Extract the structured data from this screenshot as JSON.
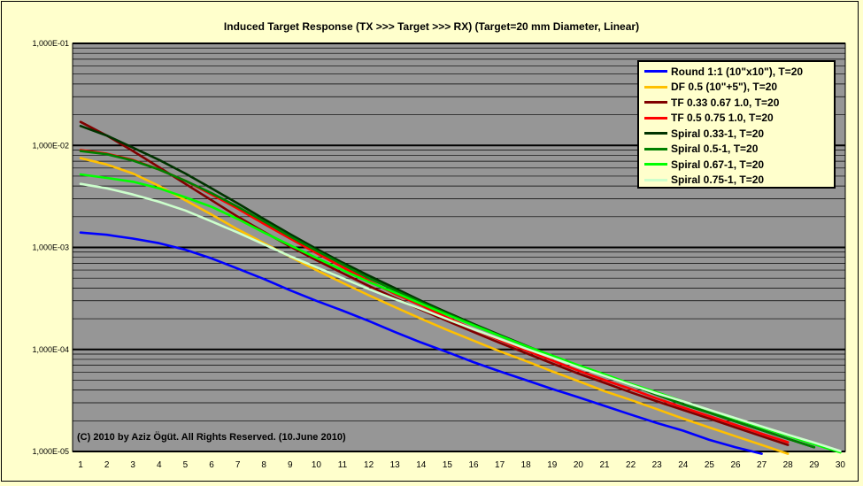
{
  "chart_data": {
    "type": "line",
    "title": "Induced Target Response (TX >>> Target >>> RX) (Target=20 mm Diameter, Linear)",
    "x": [
      1,
      2,
      3,
      4,
      5,
      6,
      7,
      8,
      9,
      10,
      11,
      12,
      13,
      14,
      15,
      16,
      17,
      18,
      19,
      20,
      21,
      22,
      23,
      24,
      25,
      26,
      27,
      28,
      29,
      30
    ],
    "xlim": [
      1,
      30
    ],
    "yscale": "log",
    "ylim": [
      1e-05,
      0.1
    ],
    "ytick_labels": [
      "1,000E-05",
      "1,000E-04",
      "1,000E-03",
      "1,000E-02",
      "1,000E-01"
    ],
    "grid": true,
    "legend_position": "top-right",
    "series": [
      {
        "name": "Round 1:1 (10\"x10\"), T=20",
        "color": "#0000ff",
        "values": [
          0.0014,
          0.00133,
          0.00122,
          0.0011,
          0.00095,
          0.00078,
          0.00062,
          0.00049,
          0.00038,
          0.0003,
          0.00024,
          0.00019,
          0.000148,
          0.000117,
          9.4e-05,
          7.5e-05,
          6.1e-05,
          5e-05,
          4.1e-05,
          3.4e-05,
          2.8e-05,
          2.3e-05,
          1.9e-05,
          1.6e-05,
          1.3e-05,
          1.1e-05,
          9.5e-06,
          null,
          null,
          null
        ]
      },
      {
        "name": "DF 0.5 (10\"+5\"), T=20",
        "color": "#ffc000",
        "values": [
          0.0075,
          0.0065,
          0.0053,
          0.004,
          0.0029,
          0.0021,
          0.0015,
          0.0011,
          0.00081,
          0.0006,
          0.00045,
          0.00034,
          0.00026,
          0.0002,
          0.000155,
          0.000122,
          9.6e-05,
          7.7e-05,
          6.1e-05,
          4.9e-05,
          3.9e-05,
          3.2e-05,
          2.6e-05,
          2.1e-05,
          1.72e-05,
          1.41e-05,
          1.16e-05,
          9.5e-06,
          null,
          null
        ]
      },
      {
        "name": "TF 0.33 0.67 1.0, T=20",
        "color": "#800000",
        "values": [
          0.017,
          0.0125,
          0.0088,
          0.0061,
          0.0042,
          0.0029,
          0.002,
          0.00142,
          0.00102,
          0.00075,
          0.00056,
          0.00042,
          0.00032,
          0.000245,
          0.00019,
          0.000148,
          0.000116,
          9.2e-05,
          7.3e-05,
          5.8e-05,
          4.7e-05,
          3.8e-05,
          3.1e-05,
          2.55e-05,
          2.1e-05,
          1.72e-05,
          1.41e-05,
          1.16e-05,
          null,
          null
        ]
      },
      {
        "name": "TF 0.5 0.75 1.0, T=20",
        "color": "#ff0000",
        "values": [
          0.009,
          0.0083,
          0.0072,
          0.0058,
          0.0045,
          0.0033,
          0.0024,
          0.0017,
          0.00122,
          0.00088,
          0.00064,
          0.00047,
          0.00035,
          0.00027,
          0.000205,
          0.000158,
          0.000124,
          9.8e-05,
          7.8e-05,
          6.2e-05,
          5e-05,
          4.1e-05,
          3.3e-05,
          2.7e-05,
          2.22e-05,
          1.82e-05,
          1.49e-05,
          1.23e-05,
          null,
          null
        ]
      },
      {
        "name": "Spiral 0.33-1, T=20",
        "color": "#003300",
        "values": [
          0.0155,
          0.0125,
          0.0095,
          0.0072,
          0.0053,
          0.0038,
          0.0027,
          0.0019,
          0.00135,
          0.00097,
          0.00071,
          0.00053,
          0.0004,
          0.0003,
          0.00023,
          0.000178,
          0.000139,
          0.000109,
          8.6e-05,
          6.9e-05,
          5.5e-05,
          4.5e-05,
          3.6e-05,
          2.9e-05,
          2.4e-05,
          1.97e-05,
          1.62e-05,
          1.33e-05,
          1.1e-05,
          null
        ]
      },
      {
        "name": "Spiral 0.5-1, T=20",
        "color": "#008000",
        "values": [
          0.0088,
          0.0082,
          0.0071,
          0.0058,
          0.0045,
          0.0034,
          0.0025,
          0.0018,
          0.00128,
          0.00093,
          0.00068,
          0.0005,
          0.00038,
          0.00029,
          0.000225,
          0.000175,
          0.000137,
          0.000108,
          8.6e-05,
          6.8e-05,
          5.5e-05,
          4.5e-05,
          3.6e-05,
          2.9e-05,
          2.4e-05,
          1.97e-05,
          1.62e-05,
          1.33e-05,
          1.1e-05,
          null
        ]
      },
      {
        "name": "Spiral 0.67-1, T=20",
        "color": "#00ff00",
        "values": [
          0.0052,
          0.0048,
          0.0044,
          0.0038,
          0.0031,
          0.0025,
          0.0019,
          0.0014,
          0.00105,
          0.00079,
          0.0006,
          0.00046,
          0.00036,
          0.00028,
          0.000218,
          0.000172,
          0.000136,
          0.000108,
          8.7e-05,
          7e-05,
          5.7e-05,
          4.6e-05,
          3.8e-05,
          3.1e-05,
          2.54e-05,
          2.09e-05,
          1.72e-05,
          1.42e-05,
          1.18e-05,
          9.8e-06
        ]
      },
      {
        "name": "Spiral 0.75-1, T=20",
        "color": "#ccffcc",
        "values": [
          0.0042,
          0.0038,
          0.0033,
          0.0028,
          0.0023,
          0.0018,
          0.0014,
          0.00107,
          0.00082,
          0.00064,
          0.0005,
          0.00039,
          0.00031,
          0.00025,
          0.000198,
          0.000158,
          0.000127,
          0.000102,
          8.3e-05,
          6.7e-05,
          5.5e-05,
          4.5e-05,
          3.7e-05,
          3.1e-05,
          2.56e-05,
          2.12e-05,
          1.76e-05,
          1.46e-05,
          1.22e-05,
          1.01e-05
        ]
      }
    ]
  },
  "copyright": "(C) 2010 by Aziz Ögüt. All Rights Reserved. (10.June 2010)"
}
